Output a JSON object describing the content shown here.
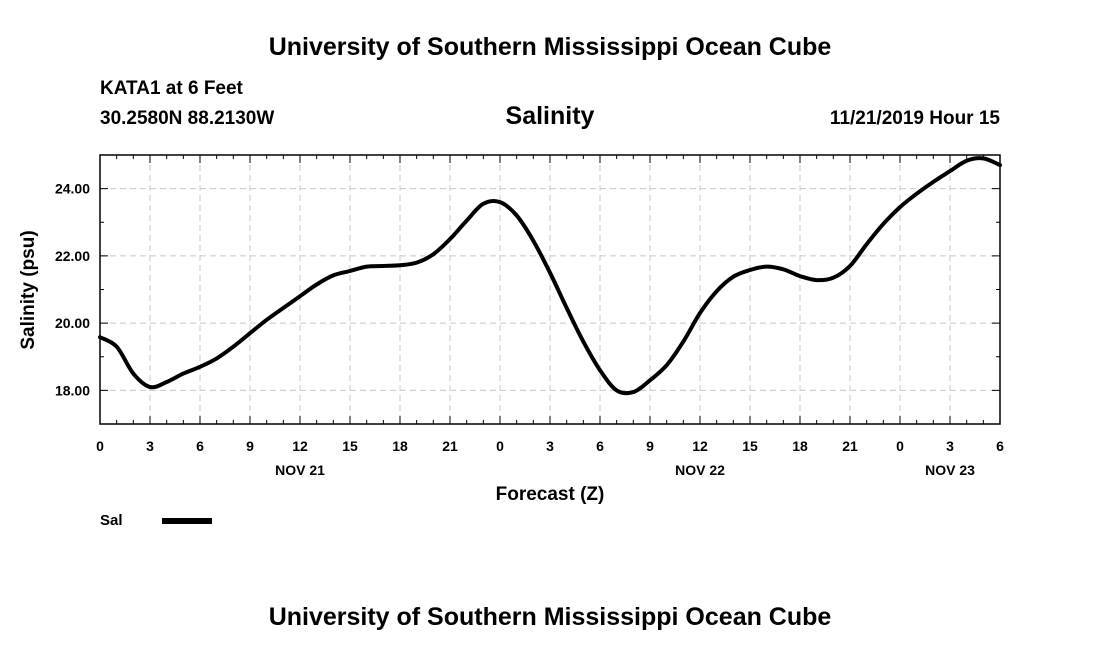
{
  "header": {
    "title": "University of Southern Mississippi Ocean Cube",
    "station": "KATA1 at 6 Feet",
    "coords": "30.2580N 88.2130W",
    "variable": "Salinity",
    "timestamp": "11/21/2019 Hour 15"
  },
  "footer": {
    "title": "University of Southern Mississippi Ocean Cube"
  },
  "legend": {
    "label": "Sal",
    "color": "#000000"
  },
  "chart_data": {
    "type": "line",
    "title": "Salinity",
    "xlabel": "Forecast (Z)",
    "ylabel": "Salinity (psu)",
    "xlim": [
      0,
      54
    ],
    "ylim": [
      17,
      25
    ],
    "grid": true,
    "legend_position": "bottom-left",
    "x_ticks": [
      {
        "x": 0,
        "label": "0"
      },
      {
        "x": 3,
        "label": "3"
      },
      {
        "x": 6,
        "label": "6"
      },
      {
        "x": 9,
        "label": "9"
      },
      {
        "x": 12,
        "label": "12"
      },
      {
        "x": 15,
        "label": "15"
      },
      {
        "x": 18,
        "label": "18"
      },
      {
        "x": 21,
        "label": "21"
      },
      {
        "x": 24,
        "label": "0"
      },
      {
        "x": 27,
        "label": "3"
      },
      {
        "x": 30,
        "label": "6"
      },
      {
        "x": 33,
        "label": "9"
      },
      {
        "x": 36,
        "label": "12"
      },
      {
        "x": 39,
        "label": "15"
      },
      {
        "x": 42,
        "label": "18"
      },
      {
        "x": 45,
        "label": "21"
      },
      {
        "x": 48,
        "label": "0"
      },
      {
        "x": 51,
        "label": "3"
      },
      {
        "x": 54,
        "label": "6"
      }
    ],
    "date_labels": [
      {
        "x": 12,
        "label": "NOV 21"
      },
      {
        "x": 36,
        "label": "NOV 22"
      },
      {
        "x": 51,
        "label": "NOV 23"
      }
    ],
    "y_ticks": [
      {
        "y": 18,
        "label": "18.00"
      },
      {
        "y": 20,
        "label": "20.00"
      },
      {
        "y": 22,
        "label": "22.00"
      },
      {
        "y": 24,
        "label": "24.00"
      }
    ],
    "series": [
      {
        "name": "Sal",
        "color": "#000000",
        "x": [
          0,
          1,
          2,
          3,
          4,
          5,
          6,
          7,
          8,
          9,
          10,
          11,
          12,
          13,
          14,
          15,
          16,
          17,
          18,
          19,
          20,
          21,
          22,
          23,
          24,
          25,
          26,
          27,
          28,
          29,
          30,
          31,
          32,
          33,
          34,
          35,
          36,
          37,
          38,
          39,
          40,
          41,
          42,
          43,
          44,
          45,
          46,
          47,
          48,
          49,
          50,
          51,
          52,
          53,
          54
        ],
        "values": [
          19.58,
          19.3,
          18.5,
          18.1,
          18.25,
          18.5,
          18.7,
          18.95,
          19.3,
          19.7,
          20.1,
          20.45,
          20.8,
          21.15,
          21.42,
          21.55,
          21.68,
          21.7,
          21.72,
          21.8,
          22.05,
          22.5,
          23.05,
          23.55,
          23.6,
          23.2,
          22.45,
          21.5,
          20.45,
          19.45,
          18.6,
          18.0,
          17.95,
          18.3,
          18.75,
          19.45,
          20.3,
          20.95,
          21.38,
          21.58,
          21.68,
          21.6,
          21.4,
          21.28,
          21.35,
          21.7,
          22.35,
          22.95,
          23.45,
          23.85,
          24.2,
          24.52,
          24.83,
          24.9,
          24.7
        ]
      }
    ]
  }
}
